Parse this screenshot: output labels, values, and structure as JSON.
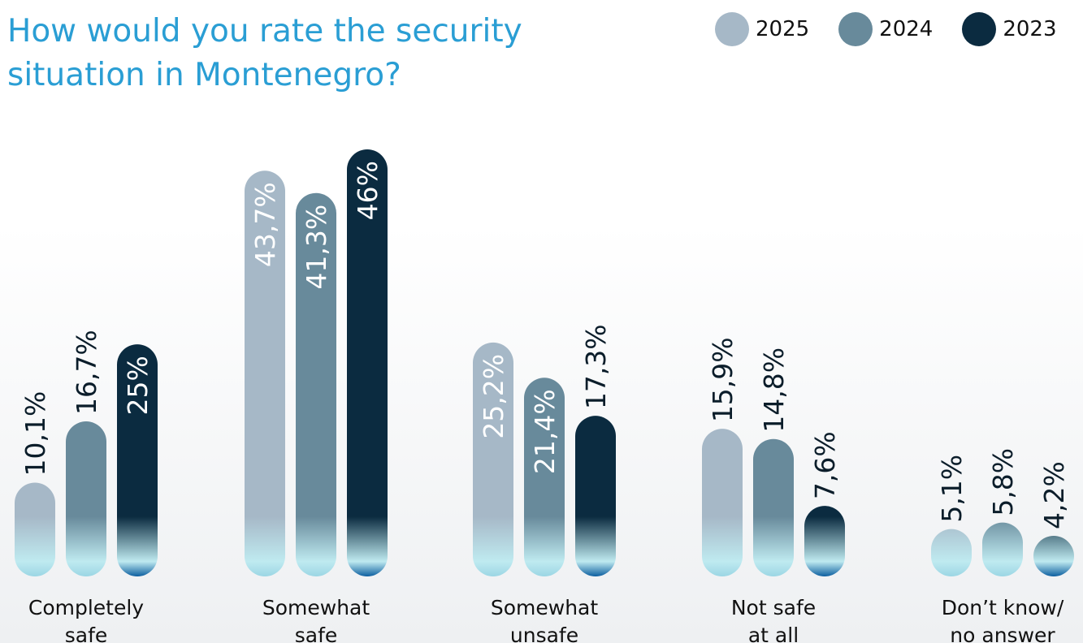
{
  "title_lines": [
    "How would you rate the security",
    "situation in Montenegro?"
  ],
  "legend": [
    {
      "label": "2025",
      "color": "#a6b8c7"
    },
    {
      "label": "2024",
      "color": "#688a9b"
    },
    {
      "label": "2023",
      "color": "#0b2b40"
    }
  ],
  "chart_data": {
    "type": "bar",
    "title": "How would you rate the security situation in Montenegro?",
    "categories": [
      [
        "Completely",
        "safe"
      ],
      [
        "Somewhat",
        "safe"
      ],
      [
        "Somewhat",
        "unsafe"
      ],
      [
        "Not safe",
        "at all"
      ],
      [
        "Don’t know/",
        "no answer"
      ]
    ],
    "series": [
      {
        "name": "2025",
        "color": "#a6b8c7",
        "values": [
          10.1,
          43.7,
          25.2,
          15.9,
          5.1
        ],
        "labels": [
          "10,1%",
          "43,7%",
          "25,2%",
          "15,9%",
          "5,1%"
        ]
      },
      {
        "name": "2024",
        "color": "#688a9b",
        "values": [
          16.7,
          41.3,
          21.4,
          14.8,
          5.8
        ],
        "labels": [
          "16,7%",
          "41,3%",
          "21,4%",
          "14,8%",
          "5,8%"
        ]
      },
      {
        "name": "2023",
        "color": "#0b2b40",
        "values": [
          25,
          46,
          17.3,
          7.6,
          4.2
        ],
        "labels": [
          "25%",
          "46%",
          "17,3%",
          "7,6%",
          "4,2%"
        ]
      }
    ],
    "xlabel": "",
    "ylabel": "",
    "ylim": [
      0,
      46
    ],
    "grid": false,
    "legend_position": "top-right"
  }
}
